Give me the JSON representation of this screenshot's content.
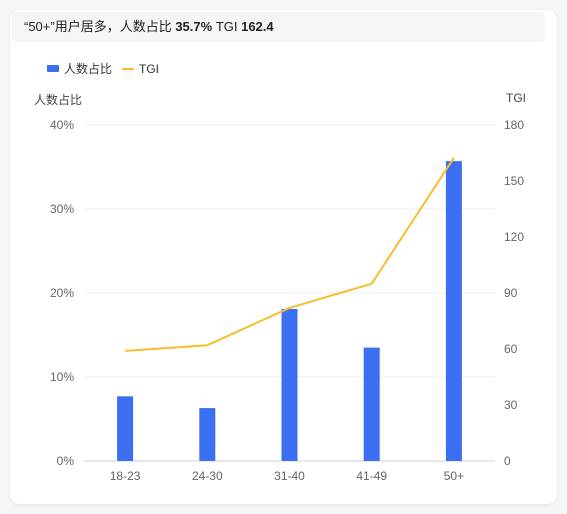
{
  "summary": {
    "prefix": "“50+”用户居多，人数占比 ",
    "share_value": "35.7%",
    "tgi_label": " TGI ",
    "tgi_value": "162.4"
  },
  "legend": {
    "bar_label": "人数占比",
    "line_label": "TGI"
  },
  "colors": {
    "bar": "#3b6ff2",
    "line": "#f6be2c",
    "grid": "#ebedf0"
  },
  "chart_data": {
    "type": "bar",
    "categories": [
      "18-23",
      "24-30",
      "31-40",
      "41-49",
      "50+"
    ],
    "series": [
      {
        "name": "人数占比",
        "type": "bar",
        "axis": "left",
        "values": [
          7.7,
          6.3,
          18.1,
          13.5,
          35.7
        ]
      },
      {
        "name": "TGI",
        "type": "line",
        "axis": "right",
        "values": [
          59,
          62,
          82,
          95,
          162.4
        ]
      }
    ],
    "ylabel": "人数占比",
    "ylabel_right": "TGI",
    "ylim": [
      0,
      40
    ],
    "ylim_right": [
      0,
      180
    ],
    "yticks": [
      "0%",
      "10%",
      "20%",
      "30%",
      "40%"
    ],
    "yticks_right": [
      "0",
      "30",
      "60",
      "90",
      "120",
      "150",
      "180"
    ],
    "grid": true,
    "legend_position": "top-left"
  }
}
